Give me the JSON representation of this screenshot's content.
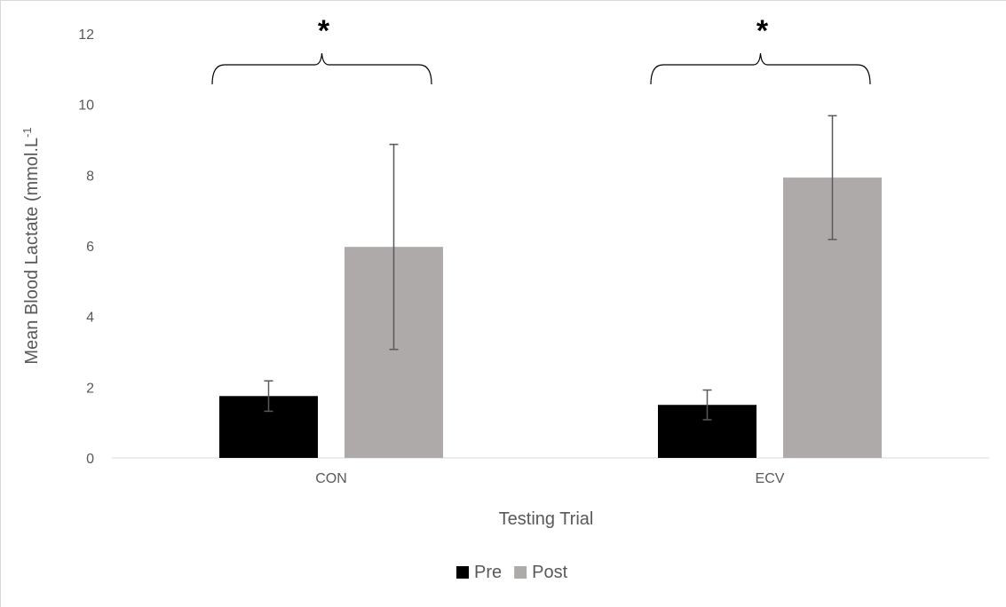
{
  "chart_data": {
    "type": "bar",
    "title": "",
    "xlabel": "Testing Trial",
    "ylabel": "Mean Blood Lactate (mmol.L-1",
    "ylabel_main": "Mean Blood Lactate (mmol.L",
    "ylabel_superscript": "-1",
    "categories": [
      "CON",
      "ECV"
    ],
    "series": [
      {
        "name": "Pre",
        "color": "#000000",
        "values": [
          1.75,
          1.5
        ],
        "error": [
          0.43,
          0.42
        ]
      },
      {
        "name": "Post",
        "color": "#aeaaaa",
        "values": [
          5.97,
          7.93
        ],
        "error": [
          2.9,
          1.75
        ]
      }
    ],
    "ylim": [
      0,
      12
    ],
    "yticks": [
      0,
      2,
      4,
      6,
      8,
      10,
      12
    ],
    "grid": false,
    "legend": "bottom-center",
    "annotations": [
      {
        "category": "CON",
        "text": "*"
      },
      {
        "category": "ECV",
        "text": "*"
      }
    ]
  }
}
